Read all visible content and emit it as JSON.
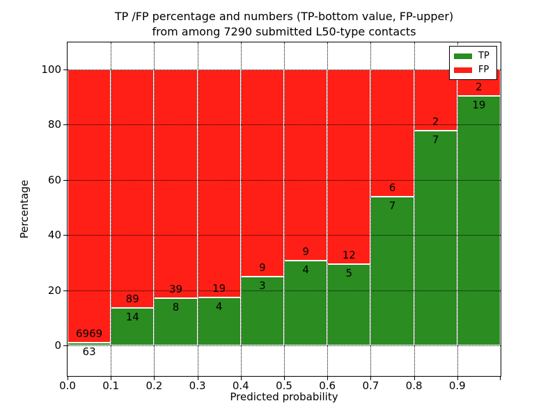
{
  "chart_data": {
    "type": "bar",
    "stacked": true,
    "title_line1": "TP /FP percentage and numbers (TP-bottom value, FP-upper)",
    "title_line2": "from among 7290 submitted L50-type contacts",
    "xlabel": "Predicted probability",
    "ylabel": "Percentage",
    "categories": [
      "0.0-0.1",
      "0.1-0.2",
      "0.2-0.3",
      "0.3-0.4",
      "0.4-0.5",
      "0.5-0.6",
      "0.6-0.7",
      "0.7-0.8",
      "0.8-0.9",
      "0.9-1.0"
    ],
    "x_tick_labels": [
      "0.0",
      "0.1",
      "0.2",
      "0.3",
      "0.4",
      "0.5",
      "0.6",
      "0.7",
      "0.8",
      "0.9"
    ],
    "y_ticks": [
      0,
      20,
      40,
      60,
      80,
      100
    ],
    "xlim": [
      0.0,
      1.0
    ],
    "ylim": [
      -11.3,
      110.0
    ],
    "bin_width": 0.1,
    "grid": true,
    "grid_style": "dotted",
    "legend_position": "upper right",
    "bar_edge_color": "#ffffff",
    "series": [
      {
        "name": "TP",
        "color": "#2a8c21",
        "counts": [
          63,
          14,
          8,
          4,
          3,
          4,
          5,
          7,
          7,
          19
        ],
        "percent": [
          0.9,
          13.59,
          17.02,
          17.39,
          25.0,
          30.77,
          29.41,
          53.85,
          77.78,
          90.48
        ]
      },
      {
        "name": "FP",
        "color": "#ff1f16",
        "counts": [
          6969,
          89,
          39,
          19,
          9,
          9,
          12,
          6,
          2,
          2
        ],
        "percent": [
          99.1,
          86.41,
          82.98,
          82.61,
          75.0,
          69.23,
          70.59,
          46.15,
          22.22,
          9.52
        ]
      }
    ]
  }
}
